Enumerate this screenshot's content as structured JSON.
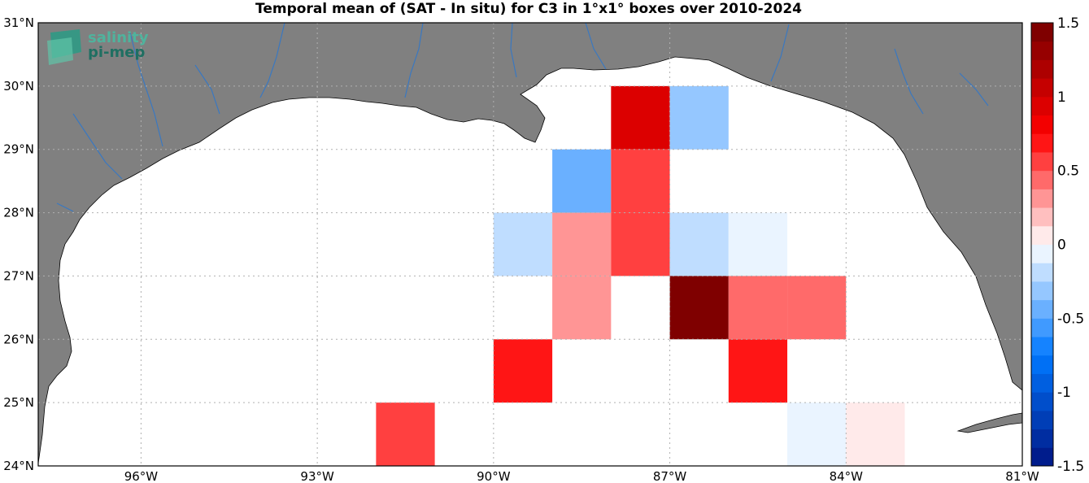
{
  "title": "Temporal mean of (SAT - In situ) for C3 in 1°x1° boxes over 2010-2024",
  "logo": {
    "line1": "salinity",
    "line2": "pi-mep"
  },
  "colors": {
    "land": "#808080",
    "ocean": "#ffffff",
    "river": "#3a78c0",
    "frame": "#000000",
    "grid": "#b0b0b0"
  },
  "axes": {
    "lon_range": [
      -97.75,
      -81
    ],
    "lat_range": [
      24,
      31
    ],
    "x_ticks": [
      {
        "value": -96,
        "label": "96°W"
      },
      {
        "value": -93,
        "label": "93°W"
      },
      {
        "value": -90,
        "label": "90°W"
      },
      {
        "value": -87,
        "label": "87°W"
      },
      {
        "value": -84,
        "label": "84°W"
      },
      {
        "value": -81,
        "label": "81°W"
      }
    ],
    "y_ticks": [
      {
        "value": 24,
        "label": "24°N"
      },
      {
        "value": 25,
        "label": "25°N"
      },
      {
        "value": 26,
        "label": "26°N"
      },
      {
        "value": 27,
        "label": "27°N"
      },
      {
        "value": 28,
        "label": "28°N"
      },
      {
        "value": 29,
        "label": "29°N"
      },
      {
        "value": 30,
        "label": "30°N"
      },
      {
        "value": 31,
        "label": "31°N"
      }
    ],
    "grid": "dotted"
  },
  "colorbar": {
    "range": [
      -1.5,
      1.5
    ],
    "levels": 24,
    "ticks": [
      {
        "value": 1.5,
        "label": "1.5"
      },
      {
        "value": 1,
        "label": "1"
      },
      {
        "value": 0.5,
        "label": "0.5"
      },
      {
        "value": 0,
        "label": "0"
      },
      {
        "value": -0.5,
        "label": "-0.5"
      },
      {
        "value": -1,
        "label": "-1"
      },
      {
        "value": -1.5,
        "label": "-1.5"
      }
    ]
  },
  "chart_data": {
    "type": "heatmap",
    "title": "Temporal mean of (SAT - In situ) for C3 in 1°x1° boxes over 2010-2024",
    "units": "grid boxes 1°x1°, values = SAT - In situ",
    "cells": [
      {
        "lon": -87.5,
        "lat": 29.5,
        "value": 0.9
      },
      {
        "lon": -86.5,
        "lat": 29.5,
        "value": -0.3
      },
      {
        "lon": -88.5,
        "lat": 28.5,
        "value": -0.5
      },
      {
        "lon": -87.5,
        "lat": 28.5,
        "value": 0.6
      },
      {
        "lon": -89.5,
        "lat": 27.5,
        "value": -0.2
      },
      {
        "lon": -88.5,
        "lat": 27.5,
        "value": 0.3
      },
      {
        "lon": -87.5,
        "lat": 27.5,
        "value": 0.6
      },
      {
        "lon": -86.5,
        "lat": 27.5,
        "value": -0.2
      },
      {
        "lon": -85.5,
        "lat": 27.5,
        "value": -0.1
      },
      {
        "lon": -88.5,
        "lat": 26.5,
        "value": 0.3
      },
      {
        "lon": -86.5,
        "lat": 26.5,
        "value": 1.5
      },
      {
        "lon": -85.5,
        "lat": 26.5,
        "value": 0.45
      },
      {
        "lon": -84.5,
        "lat": 26.5,
        "value": 0.45
      },
      {
        "lon": -89.5,
        "lat": 25.5,
        "value": 0.7
      },
      {
        "lon": -85.5,
        "lat": 25.5,
        "value": 0.7
      },
      {
        "lon": -91.5,
        "lat": 24.5,
        "value": 0.6
      },
      {
        "lon": -84.5,
        "lat": 24.5,
        "value": -0.1
      },
      {
        "lon": -83.5,
        "lat": 24.5,
        "value": 0.1
      }
    ]
  }
}
